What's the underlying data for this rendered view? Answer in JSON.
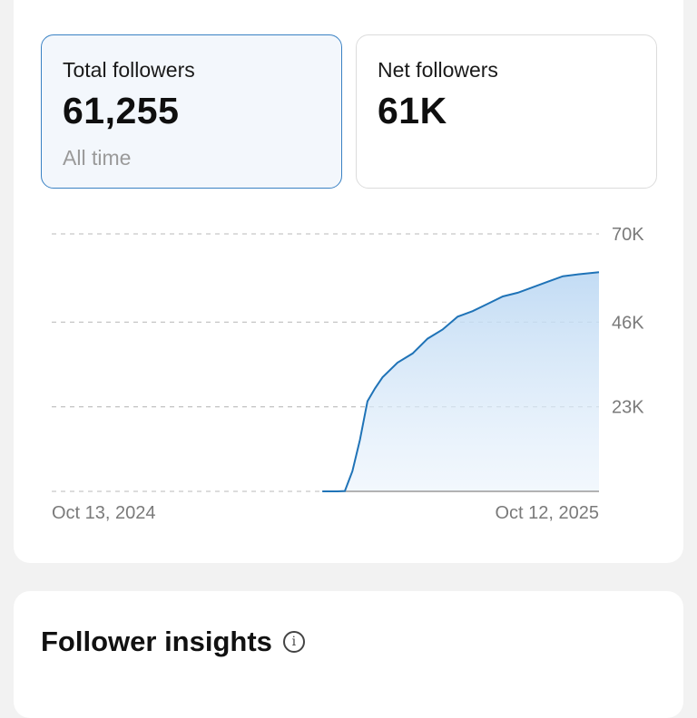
{
  "stats": {
    "total": {
      "label": "Total followers",
      "value": "61,255",
      "sub": "All time"
    },
    "net": {
      "label": "Net followers",
      "value": "61K"
    }
  },
  "chart_data": {
    "type": "area",
    "x_start_label": "Oct 13, 2024",
    "x_end_label": "Oct 12, 2025",
    "y_ticks": [
      {
        "value": 23000,
        "label": "23K"
      },
      {
        "value": 46000,
        "label": "46K"
      },
      {
        "value": 70000,
        "label": "70K"
      }
    ],
    "ylim": [
      0,
      70000
    ],
    "grid": true,
    "color": "#1f73b7",
    "x": [
      "2024-10-13",
      "2024-11-12",
      "2024-12-12",
      "2025-01-11",
      "2025-02-10",
      "2025-03-12",
      "2025-04-11",
      "2025-04-21",
      "2025-04-26",
      "2025-05-01",
      "2025-05-06",
      "2025-05-11",
      "2025-05-16",
      "2025-05-21",
      "2025-05-31",
      "2025-06-10",
      "2025-06-20",
      "2025-06-30",
      "2025-07-10",
      "2025-07-20",
      "2025-07-30",
      "2025-08-09",
      "2025-08-19",
      "2025-08-29",
      "2025-09-08",
      "2025-09-18",
      "2025-09-28",
      "2025-10-12"
    ],
    "values": [
      0,
      0,
      0,
      0,
      0,
      0,
      0,
      0,
      100,
      5500,
      14000,
      24500,
      28000,
      31000,
      35000,
      37500,
      41500,
      44000,
      47500,
      49000,
      51000,
      53000,
      54000,
      55500,
      57000,
      58500,
      59000,
      59600
    ]
  },
  "insights": {
    "title": "Follower insights",
    "info_icon": "info-icon"
  }
}
